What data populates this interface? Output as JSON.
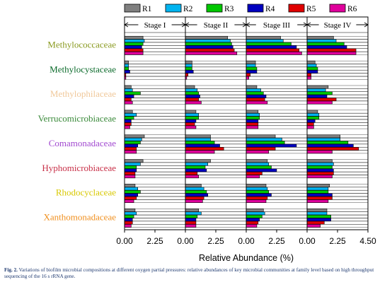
{
  "chart_data": {
    "type": "bar",
    "orientation": "horizontal",
    "panels": [
      {
        "label": "Stage I",
        "xlim": [
          0,
          4.5
        ]
      },
      {
        "label": "Stage II",
        "xlim": [
          0,
          4.5
        ]
      },
      {
        "label": "Stage III",
        "xlim": [
          0,
          4.5
        ]
      },
      {
        "label": "Stage IV",
        "xlim": [
          0,
          4.5
        ]
      }
    ],
    "xlabel": "Relative Abundance (%)",
    "xticks": [
      "0.00",
      "2.25",
      "0.00",
      "2.25",
      "0.00",
      "2.25",
      "0.00",
      "2.25",
      "4.50"
    ],
    "legend": {
      "position": "top",
      "entries": [
        {
          "label": "R1",
          "color": "#808080"
        },
        {
          "label": "R2",
          "color": "#00b4f0"
        },
        {
          "label": "R3",
          "color": "#00c800"
        },
        {
          "label": "R4",
          "color": "#0000c0"
        },
        {
          "label": "R5",
          "color": "#e00000"
        },
        {
          "label": "R6",
          "color": "#e0009c"
        }
      ]
    },
    "categories": [
      {
        "label": "Methylococcaceae",
        "color": "#8a9a20",
        "values": [
          [
            1.4,
            1.5,
            1.4,
            1.3,
            1.4,
            1.4
          ],
          [
            3.2,
            3.4,
            3.5,
            3.6,
            3.7,
            3.9
          ],
          [
            2.6,
            2.8,
            3.4,
            3.8,
            4.0,
            4.2
          ],
          [
            2.0,
            2.2,
            2.8,
            3.0,
            3.7,
            3.7
          ]
        ]
      },
      {
        "label": "Methylocystaceae",
        "color": "#0a6a2a",
        "values": [
          [
            0.3,
            0.3,
            0.3,
            0.4,
            0.1,
            0.1
          ],
          [
            0.5,
            0.5,
            0.5,
            0.6,
            0.2,
            0.1
          ],
          [
            0.7,
            0.7,
            0.8,
            0.8,
            0.3,
            0.2
          ],
          [
            0.6,
            0.7,
            0.8,
            0.8,
            0.3,
            0.3
          ]
        ]
      },
      {
        "label": "Methylophilaceae",
        "color": "#f0c89a",
        "values": [
          [
            0.5,
            0.6,
            1.2,
            0.7,
            0.5,
            0.6
          ],
          [
            0.7,
            0.9,
            1.0,
            1.1,
            1.0,
            1.2
          ],
          [
            0.8,
            1.1,
            1.3,
            1.5,
            1.4,
            1.6
          ],
          [
            1.6,
            1.4,
            1.9,
            1.5,
            2.2,
            1.9
          ]
        ]
      },
      {
        "label": "Verrucomicrobiaceae",
        "color": "#3a8a3a",
        "values": [
          [
            0.6,
            0.9,
            0.7,
            0.5,
            0.5,
            0.4
          ],
          [
            0.8,
            1.0,
            1.0,
            0.8,
            0.7,
            0.8
          ],
          [
            0.9,
            1.0,
            1.0,
            0.9,
            0.9,
            0.9
          ],
          [
            0.8,
            0.9,
            0.9,
            0.6,
            0.5,
            0.5
          ]
        ]
      },
      {
        "label": "Comamonadaceae",
        "color": "#a24ad0",
        "values": [
          [
            1.5,
            1.3,
            1.2,
            1.0,
            0.9,
            0.9
          ],
          [
            1.9,
            1.9,
            2.2,
            2.6,
            2.9,
            2.2
          ],
          [
            2.2,
            2.7,
            2.9,
            3.8,
            2.2,
            1.7
          ],
          [
            2.5,
            2.5,
            3.1,
            3.5,
            3.9,
            1.9
          ]
        ]
      },
      {
        "label": "Hyphomicrobiaceae",
        "color": "#c83048",
        "values": [
          [
            1.4,
            1.2,
            0.9,
            0.9,
            0.8,
            0.8
          ],
          [
            1.9,
            1.7,
            1.5,
            1.6,
            0.9,
            1.0
          ],
          [
            1.6,
            1.7,
            1.9,
            2.3,
            1.2,
            1.0
          ],
          [
            1.9,
            2.0,
            1.9,
            2.0,
            2.0,
            1.9
          ]
        ]
      },
      {
        "label": "Rhodocyclaceae",
        "color": "#d8c800",
        "values": [
          [
            0.8,
            1.0,
            1.2,
            1.0,
            0.9,
            0.7
          ],
          [
            1.2,
            1.4,
            1.6,
            1.7,
            1.4,
            1.3
          ],
          [
            1.5,
            1.6,
            1.7,
            1.9,
            1.6,
            1.5
          ],
          [
            1.7,
            1.6,
            1.6,
            1.9,
            1.9,
            1.6
          ]
        ]
      },
      {
        "label": "Xanthomonadaceae",
        "color": "#f09020",
        "values": [
          [
            0.8,
            0.9,
            0.7,
            0.6,
            0.6,
            0.5
          ],
          [
            1.0,
            1.2,
            0.9,
            0.8,
            0.8,
            0.8
          ],
          [
            1.3,
            1.4,
            1.2,
            1.0,
            0.9,
            0.8
          ],
          [
            1.5,
            1.5,
            1.8,
            1.8,
            1.3,
            1.0
          ]
        ]
      }
    ]
  },
  "caption": {
    "label": "Fig. 2.",
    "text": "Variations of biofilm microbial compositions at different oxygen partial pressures: relative abundances of key microbial communities at family level based on high throughput sequencing of the 16 s rRNA gene."
  }
}
